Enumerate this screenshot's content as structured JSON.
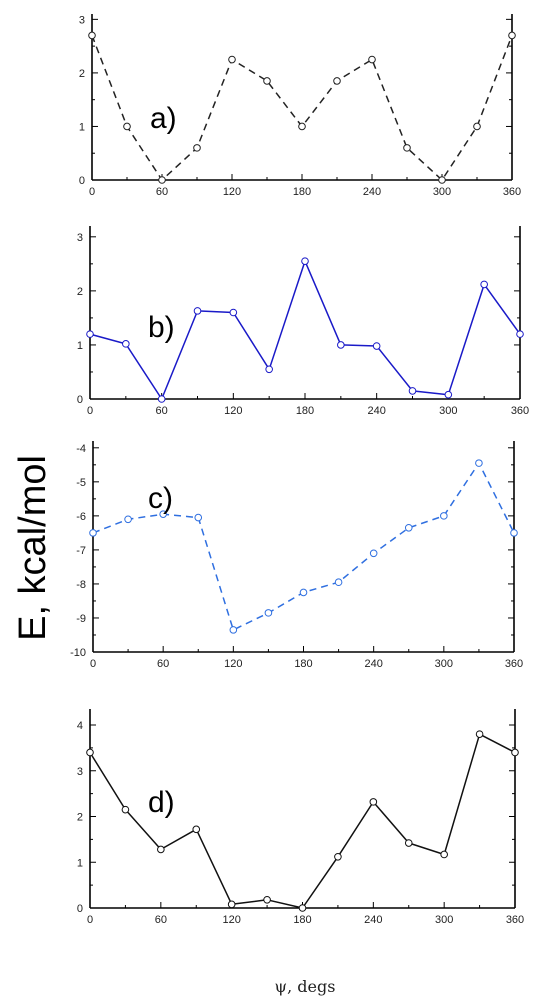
{
  "figure": {
    "ylabel": "E, kcal/mol",
    "xlabel": "ψ, degs"
  },
  "chart_data": [
    {
      "type": "line",
      "panel_label": "a)",
      "x": [
        0,
        30,
        60,
        90,
        120,
        150,
        180,
        210,
        240,
        270,
        300,
        330,
        360
      ],
      "series": [
        {
          "values": [
            2.7,
            1.0,
            0.0,
            0.6,
            2.25,
            1.85,
            1.0,
            1.85,
            2.25,
            0.6,
            0.0,
            1.0,
            2.7
          ],
          "color": "#222222",
          "dashed": true,
          "marker": "open-circle"
        }
      ],
      "xlim": [
        0,
        360
      ],
      "ylim": [
        0,
        3.1
      ],
      "xticks": [
        0,
        60,
        120,
        180,
        240,
        300,
        360
      ],
      "yticks": [
        0,
        1,
        2,
        3
      ],
      "grid": false
    },
    {
      "type": "line",
      "panel_label": "b)",
      "x": [
        0,
        30,
        60,
        90,
        120,
        150,
        180,
        210,
        240,
        270,
        300,
        330,
        360
      ],
      "series": [
        {
          "values": [
            1.2,
            1.02,
            0.0,
            1.63,
            1.6,
            0.55,
            2.55,
            1.0,
            0.98,
            0.15,
            0.08,
            2.12,
            1.2
          ],
          "color": "#1a1ac8",
          "dashed": false,
          "marker": "open-circle"
        }
      ],
      "xlim": [
        0,
        360
      ],
      "ylim": [
        0,
        3.2
      ],
      "xticks": [
        0,
        60,
        120,
        180,
        240,
        300,
        360
      ],
      "yticks": [
        0,
        1,
        2,
        3
      ],
      "grid": false
    },
    {
      "type": "line",
      "panel_label": "c)",
      "x": [
        0,
        30,
        60,
        90,
        120,
        150,
        180,
        210,
        240,
        270,
        300,
        330,
        360
      ],
      "series": [
        {
          "values": [
            -6.5,
            -6.1,
            -5.95,
            -6.05,
            -9.35,
            -8.85,
            -8.25,
            -7.95,
            -7.1,
            -6.35,
            -6.0,
            -4.45,
            -6.5
          ],
          "color": "#2f6fe0",
          "dashed": true,
          "marker": "open-circle"
        }
      ],
      "xlim": [
        0,
        360
      ],
      "ylim": [
        -10,
        -3.8
      ],
      "xticks": [
        0,
        60,
        120,
        180,
        240,
        300,
        360
      ],
      "yticks": [
        -10,
        -9,
        -8,
        -7,
        -6,
        -5,
        -4
      ],
      "grid": false
    },
    {
      "type": "line",
      "panel_label": "d)",
      "x": [
        0,
        30,
        60,
        90,
        120,
        150,
        180,
        210,
        240,
        270,
        300,
        330,
        360
      ],
      "series": [
        {
          "values": [
            3.4,
            2.15,
            1.28,
            1.72,
            0.08,
            0.18,
            0.0,
            1.12,
            2.32,
            1.42,
            1.17,
            3.8,
            3.4
          ],
          "color": "#111111",
          "dashed": false,
          "marker": "open-circle"
        }
      ],
      "xlim": [
        0,
        360
      ],
      "ylim": [
        0,
        4.35
      ],
      "xticks": [
        0,
        60,
        120,
        180,
        240,
        300,
        360
      ],
      "yticks": [
        0,
        1,
        2,
        3,
        4
      ],
      "grid": false
    }
  ]
}
